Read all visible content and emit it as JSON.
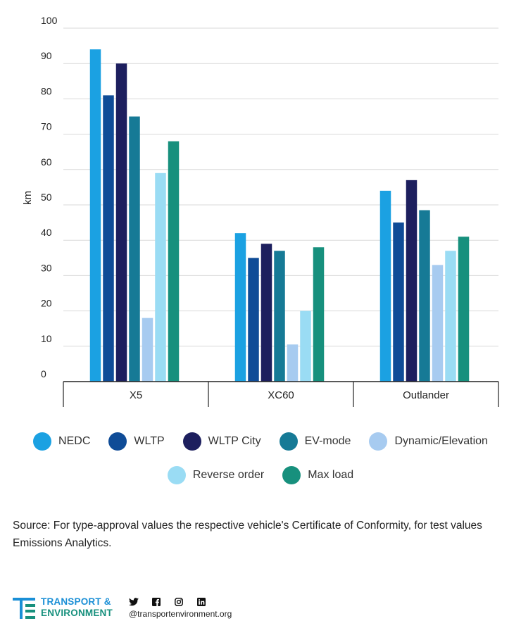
{
  "chart_data": {
    "type": "bar",
    "categories": [
      "X5",
      "XC60",
      "Outlander"
    ],
    "ylabel": "km",
    "xlabel": "",
    "ylim": [
      0,
      100
    ],
    "yticks": [
      "0",
      "10",
      "20",
      "30",
      "40",
      "50",
      "60",
      "70",
      "80",
      "90",
      "100"
    ],
    "grid": true,
    "legend_position": "bottom",
    "series": [
      {
        "name": "NEDC",
        "color": "#1ba1e2",
        "values": [
          94,
          42,
          54
        ]
      },
      {
        "name": "WLTP",
        "color": "#0f4c97",
        "values": [
          81,
          35,
          45
        ]
      },
      {
        "name": "WLTP City",
        "color": "#1d1f5e",
        "values": [
          90,
          39,
          57
        ]
      },
      {
        "name": "EV-mode",
        "color": "#167a96",
        "values": [
          75,
          37,
          48.5
        ]
      },
      {
        "name": "Dynamic/Elevation",
        "color": "#a7cbf0",
        "values": [
          18,
          10.5,
          33
        ]
      },
      {
        "name": "Reverse order",
        "color": "#9adcf4",
        "values": [
          59,
          20,
          37
        ]
      },
      {
        "name": "Max load",
        "color": "#17907d",
        "values": [
          68,
          38,
          41
        ]
      }
    ]
  },
  "source_text": "Source: For type-approval values the respective vehicle's Certificate of Conformity, for test values Emissions Analytics.",
  "footer": {
    "logo_line1": "TRANSPORT &",
    "logo_line2": "ENVIRONMENT",
    "handle": "@transportenvironment.org",
    "icons": [
      "twitter-icon",
      "facebook-icon",
      "instagram-icon",
      "linkedin-icon"
    ]
  }
}
